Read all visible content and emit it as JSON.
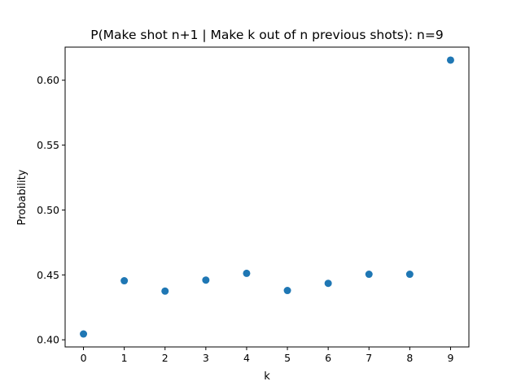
{
  "chart_data": {
    "type": "scatter",
    "title": "P(Make shot n+1 | Make k out of n previous shots): n=9",
    "xlabel": "k",
    "ylabel": "Probability",
    "x": [
      0,
      1,
      2,
      3,
      4,
      5,
      6,
      7,
      8,
      9
    ],
    "y": [
      0.4045,
      0.4455,
      0.4375,
      0.446,
      0.4512,
      0.438,
      0.4435,
      0.4505,
      0.4505,
      0.6155
    ],
    "xlim": [
      -0.45,
      9.45
    ],
    "ylim": [
      0.3945,
      0.6255
    ],
    "xticks": [
      "0",
      "1",
      "2",
      "3",
      "4",
      "5",
      "6",
      "7",
      "8",
      "9"
    ],
    "yticks": [
      "0.40",
      "0.45",
      "0.50",
      "0.55",
      "0.60"
    ],
    "ytick_values": [
      0.4,
      0.45,
      0.5,
      0.55,
      0.6
    ],
    "grid": false,
    "marker_color": "#1f77b4"
  }
}
